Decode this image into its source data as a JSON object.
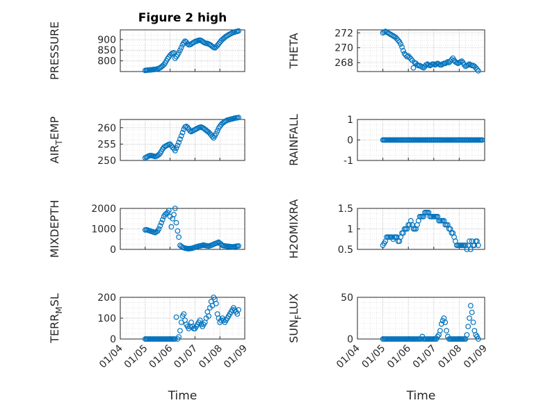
{
  "colors": {
    "marker": "#0072BD",
    "axis": "#262626",
    "grid": "#b9b9b9",
    "minor_grid": "#dcdcdc"
  },
  "chart_data": [
    {
      "id": "pressure",
      "type": "scatter",
      "title": "Figure 2 high",
      "ylabel": "PRESSURE",
      "xlabel": "",
      "show_xticks": false,
      "ylim": [
        750,
        945
      ],
      "yticks": [
        800,
        850,
        900
      ],
      "xlim": [
        0,
        5
      ],
      "x": [
        1.0,
        1.05,
        1.1,
        1.15,
        1.2,
        1.25,
        1.3,
        1.35,
        1.4,
        1.45,
        1.5,
        1.55,
        1.6,
        1.65,
        1.7,
        1.75,
        1.8,
        1.85,
        1.9,
        1.95,
        2.0,
        2.05,
        2.1,
        2.15,
        2.2,
        2.25,
        2.3,
        2.35,
        2.4,
        2.45,
        2.5,
        2.55,
        2.6,
        2.65,
        2.7,
        2.75,
        2.8,
        2.85,
        2.9,
        2.95,
        3.0,
        3.05,
        3.1,
        3.15,
        3.2,
        3.25,
        3.3,
        3.35,
        3.4,
        3.45,
        3.5,
        3.55,
        3.6,
        3.65,
        3.7,
        3.75,
        3.8,
        3.85,
        3.9,
        3.95,
        4.0,
        4.05,
        4.1,
        4.15,
        4.2,
        4.25,
        4.3,
        4.35,
        4.4,
        4.45,
        4.5,
        4.55,
        4.6,
        4.65,
        4.7,
        4.75
      ],
      "values": [
        755,
        756,
        757,
        757,
        758,
        758,
        759,
        760,
        760,
        761,
        763,
        765,
        768,
        772,
        777,
        782,
        790,
        800,
        810,
        818,
        826,
        832,
        836,
        838,
        812,
        820,
        828,
        838,
        850,
        862,
        875,
        885,
        892,
        888,
        880,
        875,
        876,
        879,
        883,
        886,
        890,
        892,
        894,
        896,
        897,
        895,
        891,
        887,
        884,
        882,
        881,
        879,
        876,
        872,
        867,
        863,
        861,
        866,
        872,
        879,
        887,
        894,
        900,
        905,
        910,
        915,
        918,
        922,
        925,
        928,
        931,
        933,
        935,
        937,
        938,
        940
      ]
    },
    {
      "id": "theta",
      "type": "scatter",
      "title": "",
      "ylabel": "THETA",
      "xlabel": "",
      "show_xticks": false,
      "ylim": [
        266.8,
        272.4
      ],
      "yticks": [
        268,
        270,
        272
      ],
      "xlim": [
        0,
        5
      ],
      "x": [
        1.0,
        1.05,
        1.1,
        1.15,
        1.2,
        1.25,
        1.3,
        1.35,
        1.4,
        1.45,
        1.5,
        1.55,
        1.6,
        1.65,
        1.7,
        1.75,
        1.8,
        1.85,
        1.9,
        1.95,
        2.0,
        2.05,
        2.1,
        2.15,
        2.2,
        2.25,
        2.3,
        2.35,
        2.4,
        2.45,
        2.5,
        2.55,
        2.6,
        2.65,
        2.7,
        2.75,
        2.8,
        2.85,
        2.9,
        2.95,
        3.0,
        3.05,
        3.1,
        3.15,
        3.2,
        3.25,
        3.3,
        3.35,
        3.4,
        3.45,
        3.5,
        3.55,
        3.6,
        3.65,
        3.7,
        3.75,
        3.8,
        3.85,
        3.9,
        3.95,
        4.0,
        4.05,
        4.1,
        4.15,
        4.2,
        4.25,
        4.3,
        4.35,
        4.4,
        4.45,
        4.5,
        4.55,
        4.6,
        4.65,
        4.7,
        4.75
      ],
      "values": [
        272.0,
        272.1,
        272.2,
        272.1,
        272.0,
        271.9,
        271.8,
        271.7,
        271.6,
        271.5,
        271.4,
        271.2,
        271.0,
        270.8,
        270.5,
        270.1,
        269.6,
        269.2,
        269.0,
        268.8,
        268.9,
        268.7,
        268.5,
        268.3,
        267.3,
        268.0,
        267.9,
        267.7,
        267.6,
        267.6,
        267.5,
        267.4,
        267.3,
        267.5,
        267.7,
        267.8,
        267.7,
        267.6,
        267.7,
        267.8,
        267.8,
        267.7,
        267.8,
        267.9,
        267.8,
        267.7,
        267.7,
        267.8,
        267.9,
        267.9,
        268.0,
        268.1,
        268.0,
        268.2,
        268.4,
        268.6,
        268.3,
        268.1,
        268.0,
        267.9,
        268.0,
        268.1,
        268.2,
        268.0,
        267.7,
        267.5,
        267.6,
        267.7,
        267.8,
        267.7,
        267.6,
        267.6,
        267.5,
        267.3,
        267.1,
        266.9
      ]
    },
    {
      "id": "air_temp",
      "type": "scatter",
      "title": "",
      "ylabel": "AIR_TEMP",
      "ylabel_main": "AIR",
      "ylabel_sub": "T",
      "ylabel_rest": "EMP",
      "xlabel": "",
      "show_xticks": false,
      "ylim": [
        250,
        262.5
      ],
      "yticks": [
        250,
        255,
        260
      ],
      "xlim": [
        0,
        5
      ],
      "x": [
        1.0,
        1.05,
        1.1,
        1.15,
        1.2,
        1.25,
        1.3,
        1.35,
        1.4,
        1.45,
        1.5,
        1.55,
        1.6,
        1.65,
        1.7,
        1.75,
        1.8,
        1.85,
        1.9,
        1.95,
        2.0,
        2.05,
        2.1,
        2.15,
        2.2,
        2.25,
        2.3,
        2.35,
        2.4,
        2.45,
        2.5,
        2.55,
        2.6,
        2.65,
        2.7,
        2.75,
        2.8,
        2.85,
        2.9,
        2.95,
        3.0,
        3.05,
        3.1,
        3.15,
        3.2,
        3.25,
        3.3,
        3.35,
        3.4,
        3.45,
        3.5,
        3.55,
        3.6,
        3.65,
        3.7,
        3.75,
        3.8,
        3.85,
        3.9,
        3.95,
        4.0,
        4.05,
        4.1,
        4.15,
        4.2,
        4.25,
        4.3,
        4.35,
        4.4,
        4.45,
        4.5,
        4.55,
        4.6,
        4.65,
        4.7,
        4.75
      ],
      "values": [
        250.8,
        251.0,
        251.2,
        251.4,
        251.5,
        251.5,
        251.4,
        251.3,
        251.2,
        251.3,
        251.5,
        251.8,
        252.2,
        252.8,
        253.5,
        254.0,
        254.3,
        254.5,
        254.7,
        254.9,
        255.0,
        254.5,
        254.0,
        253.6,
        253.0,
        253.8,
        254.6,
        255.5,
        256.5,
        257.5,
        258.5,
        259.5,
        260.2,
        260.4,
        260.1,
        259.6,
        259.0,
        258.8,
        259.0,
        259.2,
        259.4,
        259.6,
        259.8,
        260.0,
        260.1,
        260.2,
        260.0,
        259.8,
        259.5,
        259.2,
        258.9,
        258.6,
        258.2,
        257.8,
        257.3,
        256.9,
        257.5,
        258.2,
        259.0,
        259.8,
        260.4,
        260.9,
        261.3,
        261.6,
        261.9,
        262.1,
        262.3,
        262.4,
        262.5,
        262.6,
        262.7,
        262.8,
        262.9,
        263.0,
        263.0,
        263.1
      ]
    },
    {
      "id": "rainfall",
      "type": "scatter",
      "title": "",
      "ylabel": "RAINFALL",
      "xlabel": "",
      "show_xticks": false,
      "ylim": [
        -1,
        1
      ],
      "yticks": [
        -1,
        0,
        1
      ],
      "xlim": [
        0,
        5
      ],
      "constant_value": 0,
      "x_start": 1.0,
      "x_end": 4.9,
      "count": 95
    },
    {
      "id": "mixdepth",
      "type": "scatter",
      "title": "",
      "ylabel": "MIXDEPTH",
      "xlabel": "",
      "show_xticks": false,
      "ylim": [
        0,
        2000
      ],
      "yticks": [
        0,
        1000,
        2000
      ],
      "xlim": [
        0,
        5
      ],
      "x": [
        1.0,
        1.05,
        1.1,
        1.15,
        1.2,
        1.25,
        1.3,
        1.35,
        1.4,
        1.45,
        1.5,
        1.55,
        1.6,
        1.65,
        1.7,
        1.75,
        1.8,
        1.85,
        1.9,
        1.95,
        2.0,
        2.05,
        2.1,
        2.15,
        2.2,
        2.25,
        2.3,
        2.35,
        2.4,
        2.45,
        2.5,
        2.55,
        2.6,
        2.65,
        2.7,
        2.75,
        2.8,
        2.85,
        2.9,
        2.95,
        3.0,
        3.05,
        3.1,
        3.15,
        3.2,
        3.25,
        3.3,
        3.35,
        3.4,
        3.45,
        3.5,
        3.55,
        3.6,
        3.65,
        3.7,
        3.75,
        3.8,
        3.85,
        3.9,
        3.95,
        4.0,
        4.05,
        4.1,
        4.15,
        4.2,
        4.25,
        4.3,
        4.35,
        4.4,
        4.45,
        4.5,
        4.55,
        4.6,
        4.65,
        4.7,
        4.75
      ],
      "values": [
        950,
        960,
        940,
        920,
        900,
        880,
        860,
        840,
        820,
        860,
        900,
        1000,
        1150,
        1300,
        1450,
        1600,
        1700,
        1750,
        1800,
        1900,
        1600,
        1100,
        1500,
        1700,
        2000,
        1300,
        900,
        600,
        200,
        150,
        100,
        80,
        60,
        50,
        40,
        30,
        40,
        50,
        60,
        80,
        100,
        120,
        140,
        160,
        170,
        180,
        200,
        210,
        190,
        180,
        170,
        160,
        180,
        200,
        220,
        250,
        280,
        300,
        320,
        350,
        300,
        250,
        200,
        180,
        170,
        160,
        150,
        150,
        140,
        130,
        120,
        130,
        140,
        150,
        160,
        170
      ]
    },
    {
      "id": "h2omixra",
      "type": "scatter",
      "title": "",
      "ylabel": "H2OMIXRA",
      "xlabel": "",
      "show_xticks": false,
      "ylim": [
        0.5,
        1.5
      ],
      "yticks": [
        0.5,
        1,
        1.5
      ],
      "xlim": [
        0,
        5
      ],
      "x": [
        1.0,
        1.05,
        1.1,
        1.15,
        1.2,
        1.25,
        1.3,
        1.35,
        1.4,
        1.45,
        1.5,
        1.55,
        1.6,
        1.65,
        1.7,
        1.75,
        1.8,
        1.85,
        1.9,
        1.95,
        2.0,
        2.05,
        2.1,
        2.15,
        2.2,
        2.25,
        2.3,
        2.35,
        2.4,
        2.45,
        2.5,
        2.55,
        2.6,
        2.65,
        2.7,
        2.75,
        2.8,
        2.85,
        2.9,
        2.95,
        3.0,
        3.05,
        3.1,
        3.15,
        3.2,
        3.25,
        3.3,
        3.35,
        3.4,
        3.45,
        3.5,
        3.55,
        3.6,
        3.65,
        3.7,
        3.75,
        3.8,
        3.85,
        3.9,
        3.95,
        4.0,
        4.05,
        4.1,
        4.15,
        4.2,
        4.25,
        4.3,
        4.35,
        4.4,
        4.45,
        4.5,
        4.55,
        4.6,
        4.65,
        4.7,
        4.75
      ],
      "values": [
        0.6,
        0.65,
        0.7,
        0.8,
        0.8,
        0.8,
        0.8,
        0.8,
        0.75,
        0.8,
        0.8,
        0.8,
        0.7,
        0.7,
        0.8,
        0.9,
        0.9,
        1.0,
        1.0,
        1.0,
        1.1,
        1.1,
        1.2,
        1.1,
        1.0,
        1.0,
        1.0,
        1.1,
        1.2,
        1.3,
        1.3,
        1.3,
        1.3,
        1.4,
        1.4,
        1.4,
        1.4,
        1.3,
        1.3,
        1.3,
        1.3,
        1.3,
        1.3,
        1.3,
        1.2,
        1.2,
        1.2,
        1.2,
        1.2,
        1.1,
        1.1,
        1.1,
        1.0,
        1.0,
        0.9,
        0.9,
        0.8,
        0.7,
        0.6,
        0.6,
        0.6,
        0.6,
        0.6,
        0.6,
        0.6,
        0.6,
        0.5,
        0.6,
        0.7,
        0.5,
        0.7,
        0.6,
        0.6,
        0.7,
        0.7,
        0.6
      ]
    },
    {
      "id": "terr_msl",
      "type": "scatter",
      "title": "",
      "ylabel": "TERR_MSL",
      "ylabel_main": "TERR",
      "ylabel_sub": "M",
      "ylabel_rest": "SL",
      "xlabel": "Time",
      "show_xticks": true,
      "ylim": [
        0,
        200
      ],
      "yticks": [
        0,
        100,
        200
      ],
      "xlim": [
        0,
        5
      ],
      "xticks": [
        0,
        1,
        2,
        3,
        4,
        5
      ],
      "xticklabels": [
        "01/04",
        "01/05",
        "01/06",
        "01/07",
        "01/08",
        "01/09"
      ],
      "x": [
        1.0,
        1.05,
        1.1,
        1.15,
        1.2,
        1.25,
        1.3,
        1.35,
        1.4,
        1.45,
        1.5,
        1.55,
        1.6,
        1.65,
        1.7,
        1.75,
        1.8,
        1.85,
        1.9,
        1.95,
        2.0,
        2.05,
        2.1,
        2.15,
        2.2,
        2.25,
        2.3,
        2.35,
        2.4,
        2.45,
        2.5,
        2.55,
        2.6,
        2.65,
        2.7,
        2.75,
        2.8,
        2.85,
        2.9,
        2.95,
        3.0,
        3.05,
        3.1,
        3.15,
        3.2,
        3.25,
        3.3,
        3.35,
        3.4,
        3.45,
        3.5,
        3.55,
        3.6,
        3.65,
        3.7,
        3.75,
        3.8,
        3.85,
        3.9,
        3.95,
        4.0,
        4.05,
        4.1,
        4.15,
        4.2,
        4.25,
        4.3,
        4.35,
        4.4,
        4.45,
        4.5,
        4.55,
        4.6,
        4.65,
        4.7,
        4.75
      ],
      "values": [
        0,
        0,
        0,
        0,
        0,
        0,
        0,
        0,
        0,
        0,
        0,
        0,
        0,
        0,
        0,
        0,
        0,
        0,
        0,
        0,
        0,
        0,
        0,
        0,
        0,
        105,
        0,
        10,
        40,
        80,
        110,
        120,
        90,
        70,
        60,
        50,
        60,
        80,
        60,
        50,
        50,
        60,
        70,
        80,
        90,
        70,
        60,
        70,
        80,
        100,
        130,
        110,
        150,
        180,
        160,
        200,
        190,
        170,
        120,
        100,
        80,
        90,
        100,
        90,
        80,
        90,
        100,
        110,
        120,
        130,
        140,
        150,
        140,
        130,
        120,
        140
      ]
    },
    {
      "id": "sun_flux",
      "type": "scatter",
      "title": "",
      "ylabel": "SUN_FLUX",
      "ylabel_main": "SUN",
      "ylabel_sub": "F",
      "ylabel_rest": "LUX",
      "xlabel": "Time",
      "show_xticks": true,
      "ylim": [
        0,
        50
      ],
      "yticks": [
        0,
        50
      ],
      "xlim": [
        0,
        5
      ],
      "xticks": [
        0,
        1,
        2,
        3,
        4,
        5
      ],
      "xticklabels": [
        "01/04",
        "01/05",
        "01/06",
        "01/07",
        "01/08",
        "01/09"
      ],
      "x": [
        1.0,
        1.05,
        1.1,
        1.15,
        1.2,
        1.25,
        1.3,
        1.35,
        1.4,
        1.45,
        1.5,
        1.55,
        1.6,
        1.65,
        1.7,
        1.75,
        1.8,
        1.85,
        1.9,
        1.95,
        2.0,
        2.05,
        2.1,
        2.15,
        2.2,
        2.25,
        2.3,
        2.35,
        2.4,
        2.45,
        2.5,
        2.55,
        2.6,
        2.65,
        2.7,
        2.75,
        2.8,
        2.85,
        2.9,
        2.95,
        3.0,
        3.05,
        3.1,
        3.15,
        3.2,
        3.25,
        3.3,
        3.35,
        3.4,
        3.45,
        3.5,
        3.55,
        3.6,
        3.65,
        3.7,
        3.75,
        3.8,
        3.85,
        3.9,
        3.95,
        4.0,
        4.05,
        4.1,
        4.15,
        4.2,
        4.25,
        4.3,
        4.35,
        4.4,
        4.45,
        4.5,
        4.55,
        4.6,
        4.65,
        4.7,
        4.75
      ],
      "values": [
        0,
        0,
        0,
        0,
        0,
        0,
        0,
        0,
        0,
        0,
        0,
        0,
        0,
        0,
        0,
        0,
        0,
        0,
        0,
        0,
        0,
        0,
        0,
        0,
        0,
        0,
        0,
        0,
        0,
        0,
        0,
        3,
        0,
        0,
        0,
        0,
        0,
        0,
        0,
        0,
        0,
        0,
        0,
        3,
        5,
        10,
        18,
        22,
        25,
        20,
        10,
        3,
        0,
        0,
        0,
        0,
        0,
        0,
        0,
        0,
        0,
        0,
        0,
        0,
        0,
        0,
        5,
        15,
        25,
        40,
        32,
        20,
        10,
        5,
        3,
        0
      ]
    }
  ]
}
